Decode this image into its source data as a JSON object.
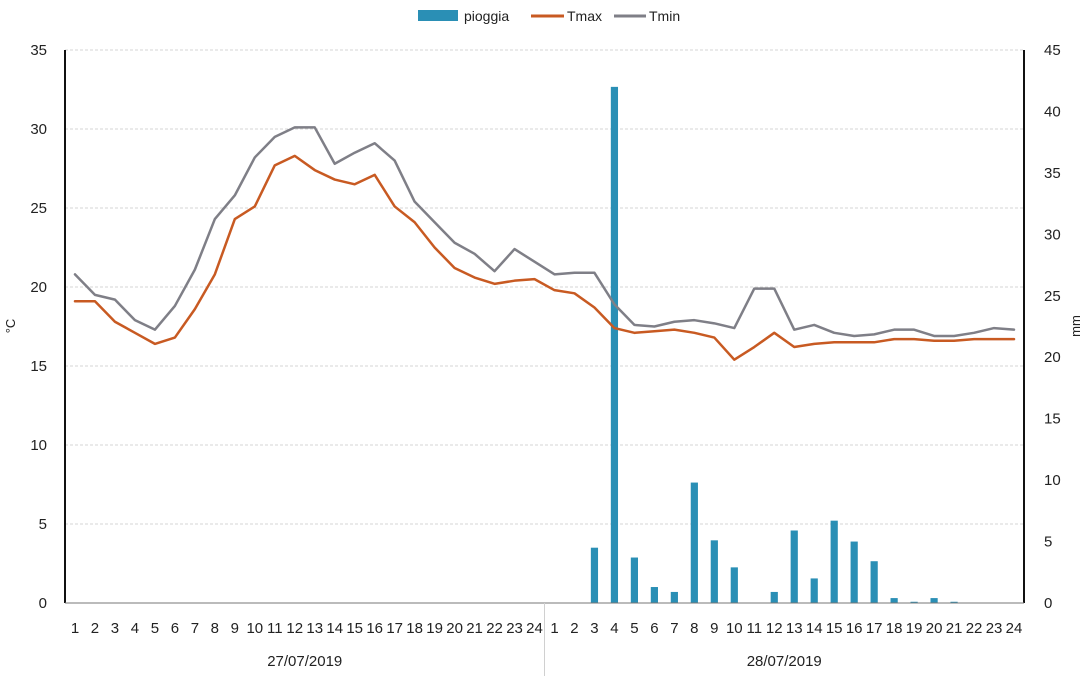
{
  "chart_data": {
    "type": "bar+line",
    "legend": {
      "placement": "top-center",
      "items": [
        {
          "label": "pioggia",
          "kind": "bar",
          "color": "#2a8fb5"
        },
        {
          "label": "Tmax",
          "kind": "line",
          "color": "#c85a22"
        },
        {
          "label": "Tmin",
          "kind": "line",
          "color": "#7f7f87"
        }
      ]
    },
    "y_left": {
      "label": "°C",
      "ylim": [
        0,
        35
      ],
      "ticks": [
        "0",
        "5",
        "10",
        "15",
        "20",
        "25",
        "30",
        "35"
      ]
    },
    "y_right": {
      "label": "mm",
      "ylim": [
        0,
        45
      ],
      "ticks": [
        "0",
        "5",
        "10",
        "15",
        "20",
        "25",
        "30",
        "35",
        "40",
        "45"
      ]
    },
    "grid": true,
    "categories": [
      "1",
      "2",
      "3",
      "4",
      "5",
      "6",
      "7",
      "8",
      "9",
      "10",
      "11",
      "12",
      "13",
      "14",
      "15",
      "16",
      "17",
      "18",
      "19",
      "20",
      "21",
      "22",
      "23",
      "24",
      "1",
      "2",
      "3",
      "4",
      "5",
      "6",
      "7",
      "8",
      "9",
      "10",
      "11",
      "12",
      "13",
      "14",
      "15",
      "16",
      "17",
      "18",
      "19",
      "20",
      "21",
      "22",
      "23",
      "24"
    ],
    "groups": [
      {
        "label": "27/07/2019",
        "span": 24
      },
      {
        "label": "28/07/2019",
        "span": 24
      }
    ],
    "series": [
      {
        "name": "pioggia",
        "axis": "right",
        "type": "bar",
        "values": [
          0,
          0,
          0,
          0,
          0,
          0,
          0,
          0,
          0,
          0,
          0,
          0,
          0,
          0,
          0,
          0,
          0,
          0,
          0,
          0,
          0,
          0,
          0,
          0,
          0,
          0,
          4.5,
          42,
          3.7,
          1.3,
          0.9,
          9.8,
          5.1,
          2.9,
          0,
          0.9,
          5.9,
          2,
          6.7,
          5,
          3.4,
          0.4,
          0.1,
          0.4,
          0.1,
          0,
          0,
          0
        ]
      },
      {
        "name": "Tmax",
        "axis": "left",
        "type": "line",
        "values": [
          19.1,
          19.1,
          17.8,
          17.1,
          16.4,
          16.8,
          18.6,
          20.8,
          24.3,
          25.1,
          27.7,
          28.3,
          27.4,
          26.8,
          26.5,
          27.1,
          25.1,
          24.1,
          22.5,
          21.2,
          20.6,
          20.2,
          20.4,
          20.5,
          19.8,
          19.6,
          18.7,
          17.4,
          17.1,
          17.2,
          17.3,
          17.1,
          16.8,
          15.4,
          16.2,
          17.1,
          16.2,
          16.4,
          16.5,
          16.5,
          16.5,
          16.7,
          16.7,
          16.6,
          16.6,
          16.7,
          16.7,
          16.7
        ]
      },
      {
        "name": "Tmin",
        "axis": "left",
        "type": "line",
        "values": [
          20.8,
          19.5,
          19.2,
          17.9,
          17.3,
          18.8,
          21.1,
          24.3,
          25.8,
          28.2,
          29.5,
          30.1,
          30.1,
          27.8,
          28.5,
          29.1,
          28.0,
          25.4,
          24.1,
          22.8,
          22.1,
          21.0,
          22.4,
          21.6,
          20.8,
          20.9,
          20.9,
          18.9,
          17.6,
          17.5,
          17.8,
          17.9,
          17.7,
          17.4,
          19.9,
          19.9,
          17.3,
          17.6,
          17.1,
          16.9,
          17.0,
          17.3,
          17.3,
          16.9,
          16.9,
          17.1,
          17.4,
          17.3
        ]
      }
    ]
  }
}
